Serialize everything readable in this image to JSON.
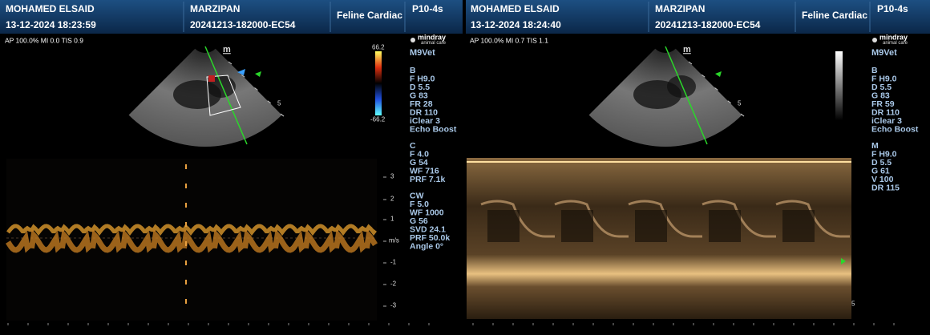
{
  "panels": [
    {
      "header": {
        "patient": "MOHAMED ELSAID",
        "datetime": "13-12-2024  18:23:59",
        "animal": "MARZIPAN",
        "exam_id": "20241213-182000-EC54",
        "preset": "Feline Cardiac",
        "probe": "P10-4s"
      },
      "status": "AP 100.0%  MI 0.0 TIS 0.9",
      "logo": {
        "brand": "mindray",
        "sub": "animal care",
        "model": "M9Vet"
      },
      "color_bar": {
        "max": "66.2",
        "min": "-66.2"
      },
      "sector_labels": [
        "m",
        "5"
      ],
      "scale_labels": [
        "3",
        "2",
        "1",
        "m/s",
        "-1",
        "-2",
        "-3"
      ],
      "param_groups": [
        {
          "title": "B",
          "lines": [
            "F H9.0",
            "D 5.5",
            "G 83",
            "FR 28",
            "DR 110",
            "iClear 3",
            "Echo Boost"
          ]
        },
        {
          "title": "C",
          "lines": [
            "F 4.0",
            "G 54",
            "WF 716",
            "PRF 7.1k"
          ]
        },
        {
          "title": "CW",
          "lines": [
            "F 5.0",
            "WF 1000",
            "G 56",
            "SVD 24.1",
            "PRF 50.0k",
            "Angle 0°"
          ]
        }
      ]
    },
    {
      "header": {
        "patient": "MOHAMED ELSAID",
        "datetime": "13-12-2024  18:24:40",
        "animal": "MARZIPAN",
        "exam_id": "20241213-182000-EC54",
        "preset": "Feline Cardiac",
        "probe": "P10-4s"
      },
      "status": "AP 100.0%  MI 0.7 TIS 1.1",
      "logo": {
        "brand": "mindray",
        "sub": "animal care",
        "model": "M9Vet"
      },
      "sector_labels": [
        "m",
        "5"
      ],
      "scale_labels": [
        "5"
      ],
      "param_groups": [
        {
          "title": "B",
          "lines": [
            "F H9.0",
            "D 5.5",
            "G 83",
            "FR 59",
            "DR 110",
            "iClear 3",
            "Echo Boost"
          ]
        },
        {
          "title": "M",
          "lines": [
            "F H9.0",
            "D 5.5",
            "G 61",
            "V 100",
            "DR 115"
          ]
        }
      ]
    }
  ]
}
